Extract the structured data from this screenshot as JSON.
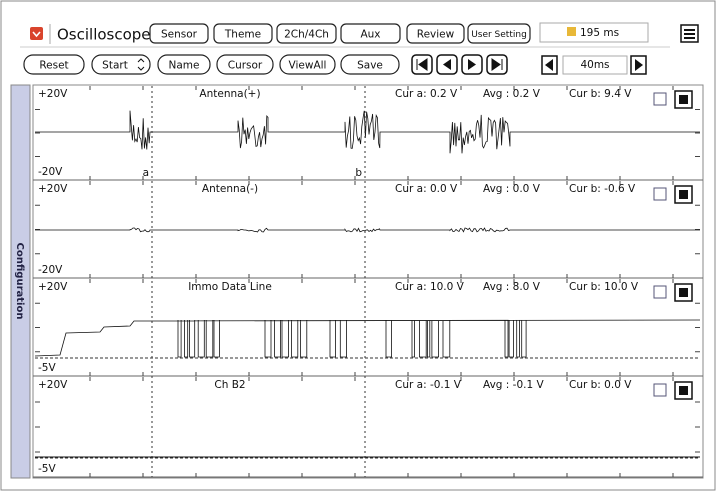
{
  "toolbar": {
    "app_title": "Oscilloscope",
    "buttons": [
      "Sensor",
      "Theme",
      "2Ch/4Ch",
      "Aux",
      "Review",
      "User Setting"
    ],
    "timer": "195 ms"
  },
  "controls": {
    "buttons": [
      "Reset",
      "Start",
      "Name",
      "Cursor",
      "ViewAll",
      "Save"
    ],
    "timebase": "40ms"
  },
  "side_panel": {
    "label": "Configuration"
  },
  "cursors": [
    "a",
    "b"
  ],
  "channels": [
    {
      "top_label": "+20V",
      "bottom_label": "-20V",
      "name": "Antenna(+)",
      "cur_a": "Cur a: 0.2 V",
      "avg": "Avg : 0.2 V",
      "cur_b": "Cur b: 9.4 V"
    },
    {
      "top_label": "+20V",
      "bottom_label": "-20V",
      "name": "Antenna(-)",
      "cur_a": "Cur a: 0.0 V",
      "avg": "Avg : 0.0 V",
      "cur_b": "Cur b: -0.6 V"
    },
    {
      "top_label": "+20V",
      "bottom_label": "-5V",
      "name": "Immo Data Line",
      "cur_a": "Cur a: 10.0 V",
      "avg": "Avg : 8.0 V",
      "cur_b": "Cur b: 10.0 V"
    },
    {
      "top_label": "+20V",
      "bottom_label": "-5V",
      "name": "Ch B2",
      "cur_a": "Cur a: -0.1 V",
      "avg": "Avg : -0.1 V",
      "cur_b": "Cur b: 0.0 V"
    }
  ]
}
